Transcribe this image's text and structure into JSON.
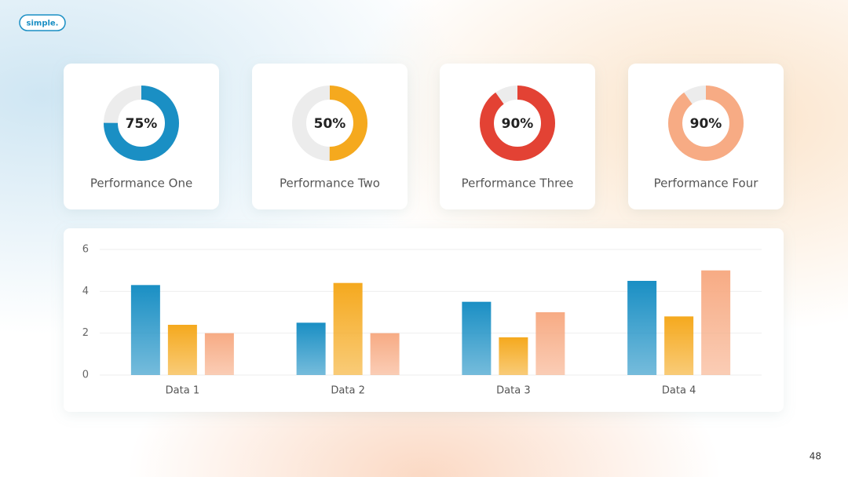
{
  "logo": "simple.",
  "page_number": "48",
  "chart_data": [
    {
      "type": "donut",
      "title": "Performance One",
      "values": [
        75
      ],
      "value_labels": [
        "75%"
      ],
      "color": "#1a8fc4"
    },
    {
      "type": "donut",
      "title": "Performance Two",
      "values": [
        50
      ],
      "value_labels": [
        "50%"
      ],
      "color": "#f5a91e"
    },
    {
      "type": "donut",
      "title": "Performance Three",
      "values": [
        90
      ],
      "value_labels": [
        "90%"
      ],
      "color": "#e34234"
    },
    {
      "type": "donut",
      "title": "Performance Four",
      "values": [
        90
      ],
      "value_labels": [
        "90%"
      ],
      "color": "#f7ab84"
    },
    {
      "type": "bar",
      "categories": [
        "Data 1",
        "Data 2",
        "Data 3",
        "Data 4"
      ],
      "series": [
        {
          "color": "#1a8fc4",
          "values": [
            4.3,
            2.5,
            3.5,
            4.5
          ]
        },
        {
          "color": "#f5a91e",
          "values": [
            2.4,
            4.4,
            1.8,
            2.8
          ]
        },
        {
          "color": "#f7ab84",
          "values": [
            2,
            2,
            3,
            5
          ]
        }
      ],
      "ylim": [
        0,
        6
      ],
      "yticks": [
        0,
        2,
        4,
        6
      ],
      "grid": true
    }
  ]
}
